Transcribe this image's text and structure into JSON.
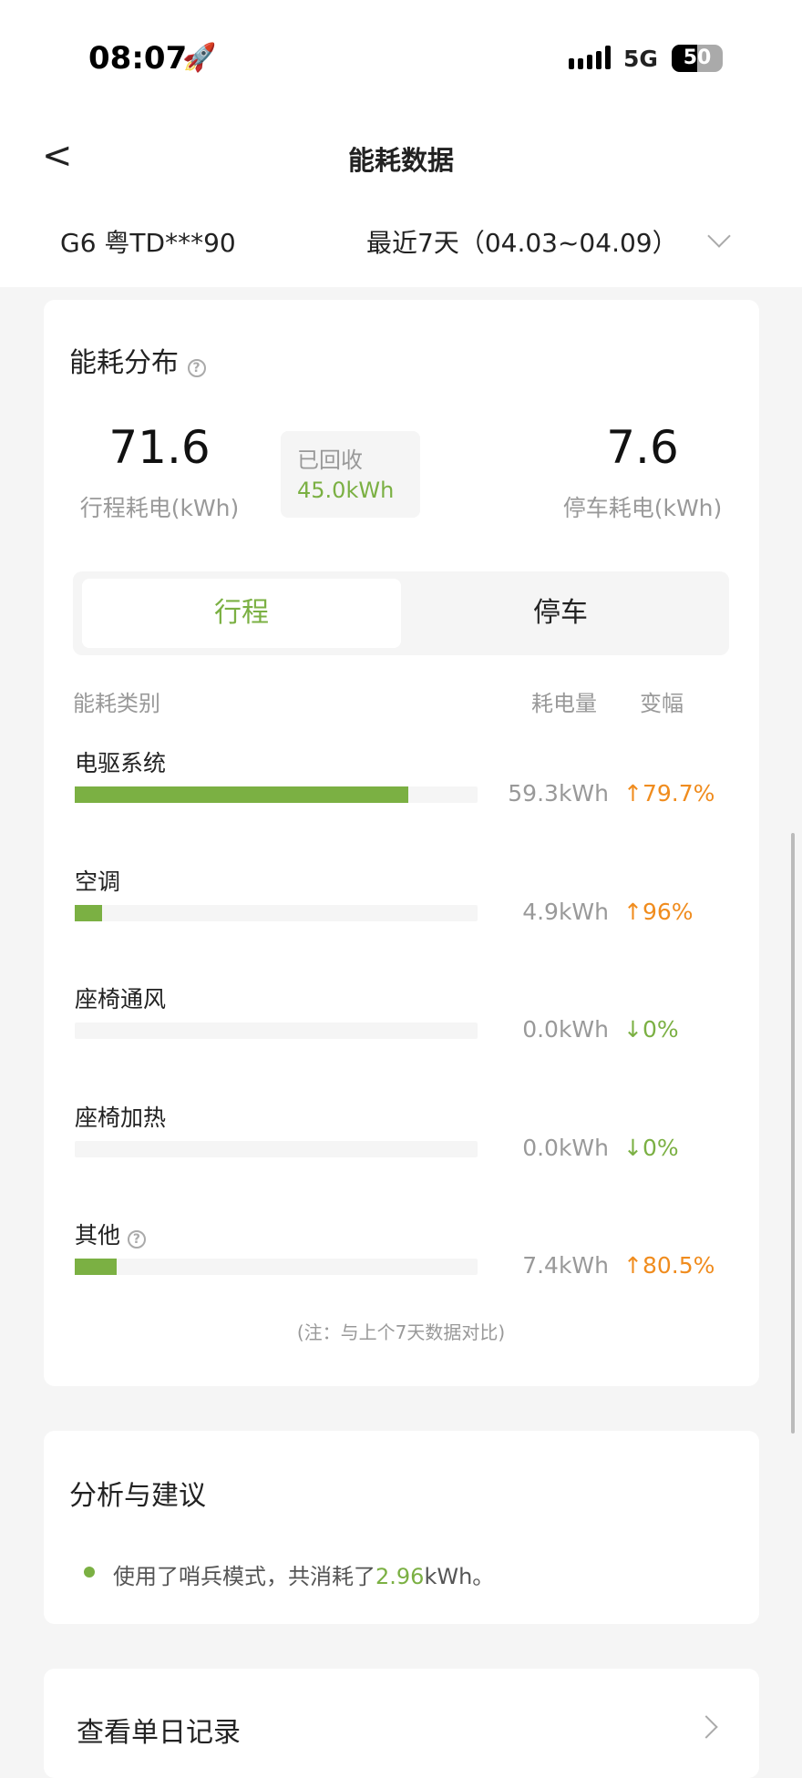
{
  "status_bar": {
    "time": "08:07",
    "network": "5G",
    "battery": "50",
    "icons": [
      "rocket-icon",
      "signal-icon",
      "battery-icon"
    ]
  },
  "nav": {
    "title": "能耗数据",
    "back_icon": "chevron-left-icon"
  },
  "filter": {
    "vehicle": "G6 粤TD***90",
    "range": "最近7天（04.03~04.09）"
  },
  "distribution": {
    "title": "能耗分布",
    "trip_value": "71.6",
    "trip_label": "行程耗电(kWh)",
    "recovered_label": "已回收",
    "recovered_value": "45.0kWh",
    "park_value": "7.6",
    "park_label": "停车耗电(kWh)",
    "tabs": [
      {
        "label": "行程",
        "active": true
      },
      {
        "label": "停车",
        "active": false
      }
    ],
    "columns": {
      "category": "能耗类别",
      "energy": "耗电量",
      "change": "变幅"
    },
    "rows": [
      {
        "name": "电驱系统",
        "value": "59.3kWh",
        "kwh": 59.3,
        "change": "79.7%",
        "direction": "up"
      },
      {
        "name": "空调",
        "value": "4.9kWh",
        "kwh": 4.9,
        "change": "96%",
        "direction": "up"
      },
      {
        "name": "座椅通风",
        "value": "0.0kWh",
        "kwh": 0,
        "change": "0%",
        "direction": "down"
      },
      {
        "name": "座椅加热",
        "value": "0.0kWh",
        "kwh": 0,
        "change": "0%",
        "direction": "down"
      },
      {
        "name": "其他",
        "value": "7.4kWh",
        "kwh": 7.4,
        "change": "80.5%",
        "direction": "up",
        "help": true
      }
    ],
    "note": "(注：与上个7天数据对比)"
  },
  "analysis": {
    "title": "分析与建议",
    "text_before": "使用了哨兵模式，共消耗了",
    "highlight": "2.96",
    "text_after": "kWh。"
  },
  "daily": {
    "label": "查看单日记录"
  },
  "colors": {
    "accent": "#7bb043",
    "up": "#f08c1e",
    "down": "#7bb043"
  }
}
